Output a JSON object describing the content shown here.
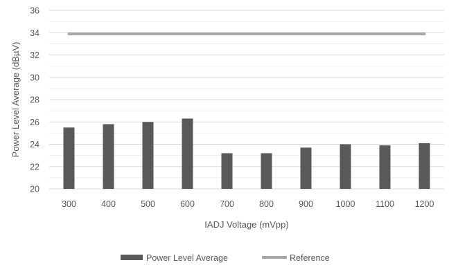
{
  "chart_data": {
    "type": "bar",
    "title": "",
    "xlabel": "IADJ Voltage (mVpp)",
    "ylabel": "Power Level Average (dBµV)",
    "categories": [
      "300",
      "400",
      "500",
      "600",
      "700",
      "800",
      "900",
      "1000",
      "1100",
      "1200"
    ],
    "ylim": [
      20,
      36
    ],
    "y_ticks": [
      "20",
      "22",
      "24",
      "26",
      "28",
      "30",
      "32",
      "34",
      "36"
    ],
    "grid": true,
    "legend_position": "bottom",
    "series": [
      {
        "name": "Power Level Average",
        "kind": "bar",
        "color": "#595959",
        "values": [
          25.5,
          25.8,
          26.0,
          26.3,
          23.2,
          23.2,
          23.7,
          24.0,
          23.9,
          24.1
        ]
      },
      {
        "name": "Reference",
        "kind": "line",
        "color": "#a6a6a6",
        "values": [
          33.9,
          33.9,
          33.9,
          33.9,
          33.9,
          33.9,
          33.9,
          33.9,
          33.9,
          33.9
        ]
      }
    ]
  }
}
